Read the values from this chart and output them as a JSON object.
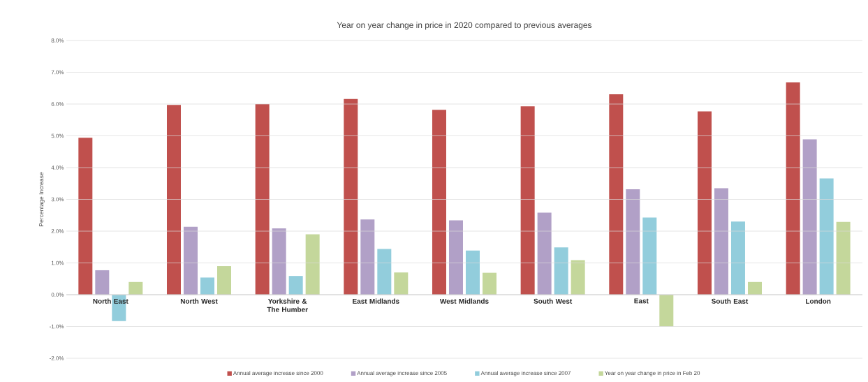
{
  "chart_data": {
    "type": "bar",
    "title": "Year on year change in price in 2020 compared to previous averages",
    "ylabel": "Percentage Increase",
    "categories": [
      "North East",
      "North West",
      "Yorkshire & The Humber",
      "East Midlands",
      "West Midlands",
      "South West",
      "East",
      "South East",
      "London"
    ],
    "series": [
      {
        "name": "Annual average increase since 2000",
        "color": "#c0504d",
        "values": [
          4.94,
          5.97,
          6.0,
          6.16,
          5.82,
          5.93,
          6.31,
          5.77,
          6.68
        ]
      },
      {
        "name": "Annual average increase since 2005",
        "color": "#b1a0c7",
        "values": [
          0.77,
          2.14,
          2.09,
          2.37,
          2.34,
          2.58,
          3.32,
          3.35,
          4.89
        ]
      },
      {
        "name": "Annual average increase since 2007",
        "color": "#92cddc",
        "values": [
          -0.83,
          0.54,
          0.59,
          1.44,
          1.39,
          1.49,
          2.43,
          2.3,
          3.66
        ]
      },
      {
        "name": "Year on year change in price in Feb 20",
        "color": "#c4d79b",
        "values": [
          0.4,
          0.9,
          1.9,
          0.7,
          0.69,
          1.09,
          -1.0,
          0.4,
          2.29
        ]
      }
    ],
    "ylim": [
      -2,
      8
    ],
    "yticks": [
      {
        "value": -2,
        "label": "-2.0%"
      },
      {
        "value": -1,
        "label": "-1.0%"
      },
      {
        "value": 0,
        "label": "0.0%"
      },
      {
        "value": 1,
        "label": "1.0%"
      },
      {
        "value": 2,
        "label": "2.0%"
      },
      {
        "value": 3,
        "label": "3.0%"
      },
      {
        "value": 4,
        "label": "4.0%"
      },
      {
        "value": 5,
        "label": "5.0%"
      },
      {
        "value": 6,
        "label": "6.0%"
      },
      {
        "value": 7,
        "label": "7.0%"
      },
      {
        "value": 8,
        "label": "8.0%"
      }
    ],
    "grid": "y",
    "legend": "bottom"
  }
}
